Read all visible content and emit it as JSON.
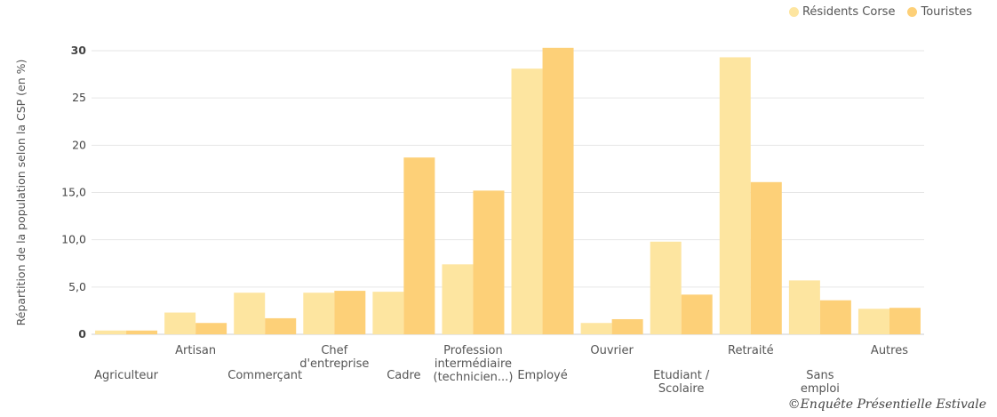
{
  "chart_data": {
    "type": "bar",
    "title": "",
    "xlabel": "",
    "ylabel": "Répartition de la population selon la CSP (en %)",
    "ylim": [
      0,
      30
    ],
    "yticks": [
      {
        "value": 0,
        "label": "0"
      },
      {
        "value": 5,
        "label": "5,0"
      },
      {
        "value": 10,
        "label": "10,0"
      },
      {
        "value": 15,
        "label": "15,0"
      },
      {
        "value": 20,
        "label": "20"
      },
      {
        "value": 25,
        "label": "25"
      },
      {
        "value": 30,
        "label": "30"
      }
    ],
    "grid": true,
    "legend_position": "top-right",
    "categories": [
      [
        "Agriculteur"
      ],
      [
        "Artisan"
      ],
      [
        "Commerçant"
      ],
      [
        "Chef",
        "d'entreprise"
      ],
      [
        "Cadre"
      ],
      [
        "Profession",
        "intermédiaire",
        "(technicien...)"
      ],
      [
        "Employé"
      ],
      [
        "Ouvrier"
      ],
      [
        "Etudiant /",
        "Scolaire"
      ],
      [
        "Retraité"
      ],
      [
        "Sans",
        "emploi"
      ],
      [
        "Autres"
      ]
    ],
    "series": [
      {
        "name": "Résidents Corse",
        "color": "#fde5a0",
        "values": [
          0.4,
          2.3,
          4.4,
          4.4,
          4.5,
          7.4,
          28.1,
          1.2,
          9.8,
          29.3,
          5.7,
          2.7
        ]
      },
      {
        "name": "Touristes",
        "color": "#fdd078",
        "values": [
          0.4,
          1.2,
          1.7,
          4.6,
          18.7,
          15.2,
          30.3,
          1.6,
          4.2,
          16.1,
          3.6,
          2.8
        ]
      }
    ]
  },
  "credit": "©Enquête Présentielle Estivale"
}
